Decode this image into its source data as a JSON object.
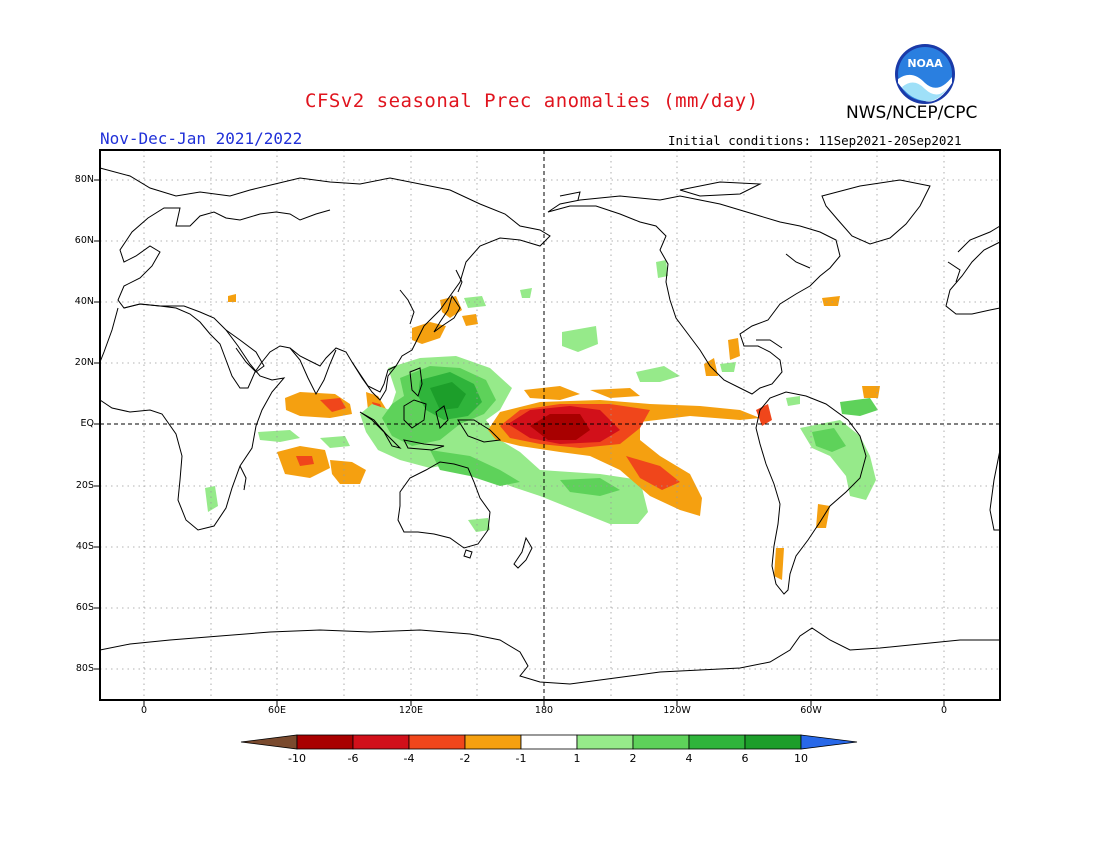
{
  "header": {
    "title": "CFSv2 seasonal Prec anomalies (mm/day)",
    "agency": "NWS/NCEP/CPC",
    "logo_text": "NOAA",
    "period": "Nov-Dec-Jan 2021/2022",
    "initial_conditions": "Initial conditions: 11Sep2021-20Sep2021"
  },
  "map": {
    "projection": "cylindrical equidistant",
    "lat_labels": [
      {
        "id": "80n",
        "text": "80N"
      },
      {
        "id": "60n",
        "text": "60N"
      },
      {
        "id": "40n",
        "text": "40N"
      },
      {
        "id": "20n",
        "text": "20N"
      },
      {
        "id": "eq",
        "text": "EQ"
      },
      {
        "id": "20s",
        "text": "20S"
      },
      {
        "id": "40s",
        "text": "40S"
      },
      {
        "id": "60s",
        "text": "60S"
      },
      {
        "id": "80s",
        "text": "80S"
      }
    ],
    "lon_labels": [
      {
        "id": "0-left",
        "text": "0"
      },
      {
        "id": "60e",
        "text": "60E"
      },
      {
        "id": "120e",
        "text": "120E"
      },
      {
        "id": "180",
        "text": "180"
      },
      {
        "id": "120w",
        "text": "120W"
      },
      {
        "id": "60w",
        "text": "60W"
      },
      {
        "id": "0-right",
        "text": "0"
      }
    ],
    "grid": "dotted",
    "reference_lines": "dashed equator and dateline"
  },
  "colorbar": {
    "ticks": [
      "-10",
      "-6",
      "-4",
      "-2",
      "-1",
      "1",
      "2",
      "4",
      "6",
      "10"
    ],
    "colors": [
      "#7a4a2e",
      "#a80000",
      "#d2101a",
      "#f0461b",
      "#f5a010",
      "#ffffff",
      "#96ea8a",
      "#5ed25a",
      "#2fb43b",
      "#1c9e2a",
      "#2868e8"
    ]
  },
  "colors": {
    "title": "#e0141e",
    "period": "#2030d8",
    "wet_light": "#96ea8a",
    "wet_mid": "#5ed25a",
    "wet_dark": "#2fb43b",
    "dry_light": "#f5a010",
    "dry_mid": "#f0461b",
    "dry_strong": "#d2101a",
    "dry_extreme": "#a80000"
  }
}
